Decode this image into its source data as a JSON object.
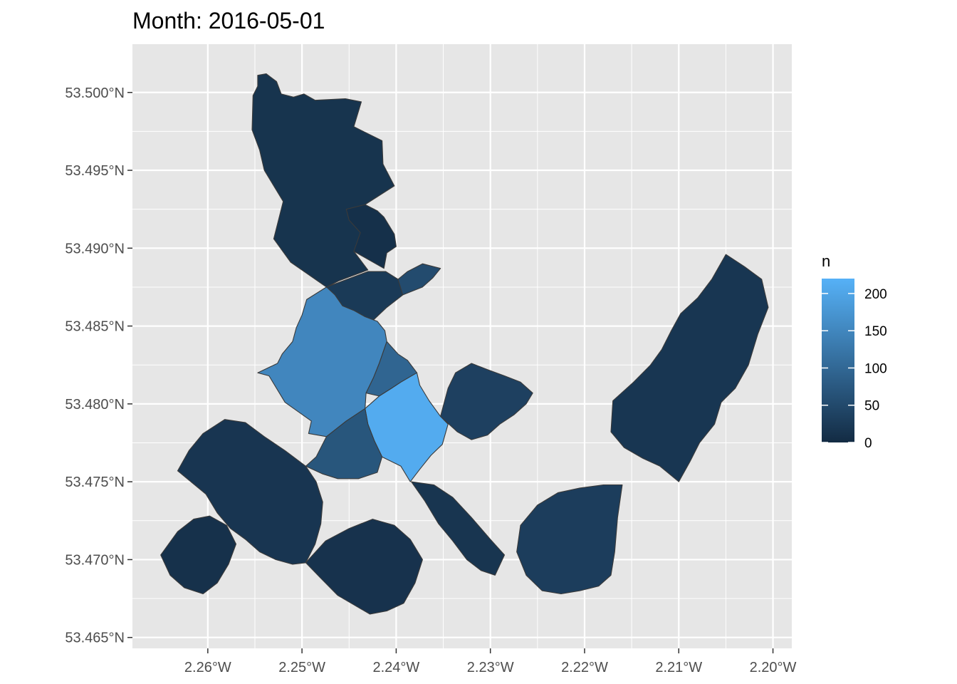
{
  "title": "Month: 2016-05-01",
  "chart_data": {
    "type": "choropleth",
    "title": "Month: 2016-05-01",
    "xlim": [
      -2.268,
      -2.198
    ],
    "ylim": [
      53.4643,
      53.5031
    ],
    "x_ticks": [
      -2.26,
      -2.25,
      -2.24,
      -2.23,
      -2.22,
      -2.21,
      -2.2
    ],
    "x_tick_labels": [
      "2.26°W",
      "2.25°W",
      "2.24°W",
      "2.23°W",
      "2.22°W",
      "2.21°W",
      "2.20°W"
    ],
    "y_ticks": [
      53.465,
      53.47,
      53.475,
      53.48,
      53.485,
      53.49,
      53.495,
      53.5
    ],
    "y_tick_labels": [
      "53.465°N",
      "53.470°N",
      "53.475°N",
      "53.480°N",
      "53.485°N",
      "53.490°N",
      "53.495°N",
      "53.500°N"
    ],
    "panel_background": "#e6e6e6",
    "grid_color": "#ffffff",
    "region_border_color": "#3a3a3a",
    "legend": {
      "title": "n",
      "position": "right",
      "min": 0,
      "max": 220,
      "breaks": [
        0,
        50,
        100,
        150,
        200
      ],
      "break_labels": [
        "0",
        "50",
        "100",
        "150",
        "200"
      ],
      "low_color": "#132b43",
      "high_color": "#56b1f7"
    },
    "regions": [
      {
        "id": "north-strip",
        "n": 14,
        "points": [
          [
            -2.2538,
            53.5012
          ],
          [
            -2.2527,
            53.5007
          ],
          [
            -2.2522,
            53.4999
          ],
          [
            -2.2509,
            53.4997
          ],
          [
            -2.2498,
            53.4999
          ],
          [
            -2.2486,
            53.4995
          ],
          [
            -2.2454,
            53.4996
          ],
          [
            -2.2437,
            53.4994
          ],
          [
            -2.2445,
            53.4978
          ],
          [
            -2.2415,
            53.4969
          ],
          [
            -2.2414,
            53.4954
          ],
          [
            -2.2402,
            53.494
          ],
          [
            -2.2433,
            53.4928
          ],
          [
            -2.2426,
            53.4908
          ],
          [
            -2.2445,
            53.4898
          ],
          [
            -2.243,
            53.4886
          ],
          [
            -2.2461,
            53.4879
          ],
          [
            -2.2474,
            53.4875
          ],
          [
            -2.2512,
            53.4891
          ],
          [
            -2.253,
            53.4906
          ],
          [
            -2.252,
            53.493
          ],
          [
            -2.254,
            53.495
          ],
          [
            -2.2545,
            53.4963
          ],
          [
            -2.2553,
            53.4976
          ],
          [
            -2.2552,
            53.4998
          ],
          [
            -2.2547,
            53.5004
          ],
          [
            -2.2547,
            53.5011
          ]
        ]
      },
      {
        "id": "north-small",
        "n": 8,
        "points": [
          [
            -2.2453,
            53.4925
          ],
          [
            -2.2433,
            53.4928
          ],
          [
            -2.242,
            53.4924
          ],
          [
            -2.2413,
            53.492
          ],
          [
            -2.2402,
            53.4909
          ],
          [
            -2.24,
            53.4901
          ],
          [
            -2.241,
            53.4897
          ],
          [
            -2.2413,
            53.4887
          ],
          [
            -2.2445,
            53.4898
          ],
          [
            -2.2438,
            53.491
          ],
          [
            -2.245,
            53.4918
          ]
        ]
      },
      {
        "id": "upper-center-left",
        "n": 24,
        "points": [
          [
            -2.2411,
            53.4885
          ],
          [
            -2.2398,
            53.488
          ],
          [
            -2.2393,
            53.487
          ],
          [
            -2.241,
            53.4862
          ],
          [
            -2.2424,
            53.4854
          ],
          [
            -2.2448,
            53.4852
          ],
          [
            -2.2467,
            53.485
          ],
          [
            -2.2475,
            53.4853
          ],
          [
            -2.2474,
            53.486
          ],
          [
            -2.2474,
            53.4875
          ],
          [
            -2.243,
            53.4885
          ]
        ]
      },
      {
        "id": "upper-center-right",
        "n": 52,
        "points": [
          [
            -2.2398,
            53.488
          ],
          [
            -2.2388,
            53.4885
          ],
          [
            -2.2372,
            53.489
          ],
          [
            -2.2353,
            53.4887
          ],
          [
            -2.2361,
            53.4881
          ],
          [
            -2.2372,
            53.4875
          ],
          [
            -2.2393,
            53.487
          ]
        ]
      },
      {
        "id": "west-main",
        "n": 150,
        "points": [
          [
            -2.2474,
            53.4875
          ],
          [
            -2.2465,
            53.487
          ],
          [
            -2.2457,
            53.4863
          ],
          [
            -2.2445,
            53.486
          ],
          [
            -2.2433,
            53.4856
          ],
          [
            -2.242,
            53.4853
          ],
          [
            -2.2412,
            53.4847
          ],
          [
            -2.241,
            53.484
          ],
          [
            -2.2418,
            53.4826
          ],
          [
            -2.2424,
            53.4817
          ],
          [
            -2.2432,
            53.4807
          ],
          [
            -2.2433,
            53.4797
          ],
          [
            -2.2453,
            53.4789
          ],
          [
            -2.2474,
            53.4779
          ],
          [
            -2.2493,
            53.4781
          ],
          [
            -2.249,
            53.4789
          ],
          [
            -2.2518,
            53.4801
          ],
          [
            -2.2535,
            53.4818
          ],
          [
            -2.2547,
            53.482
          ],
          [
            -2.2526,
            53.4826
          ],
          [
            -2.2521,
            53.4832
          ],
          [
            -2.251,
            53.484
          ],
          [
            -2.2506,
            53.4849
          ],
          [
            -2.25,
            53.4857
          ],
          [
            -2.2495,
            53.4867
          ]
        ]
      },
      {
        "id": "center-mid",
        "n": 95,
        "points": [
          [
            -2.241,
            53.484
          ],
          [
            -2.2398,
            53.4832
          ],
          [
            -2.2388,
            53.4828
          ],
          [
            -2.2378,
            53.482
          ],
          [
            -2.2395,
            53.4814
          ],
          [
            -2.2405,
            53.481
          ],
          [
            -2.2418,
            53.4805
          ],
          [
            -2.2432,
            53.4807
          ],
          [
            -2.2424,
            53.4817
          ],
          [
            -2.2418,
            53.4826
          ]
        ]
      },
      {
        "id": "center-bright",
        "n": 210,
        "points": [
          [
            -2.2418,
            53.4805
          ],
          [
            -2.2405,
            53.481
          ],
          [
            -2.2395,
            53.4814
          ],
          [
            -2.2378,
            53.482
          ],
          [
            -2.2375,
            53.4812
          ],
          [
            -2.2365,
            53.4802
          ],
          [
            -2.2353,
            53.4792
          ],
          [
            -2.2345,
            53.4787
          ],
          [
            -2.2351,
            53.4774
          ],
          [
            -2.2363,
            53.4767
          ],
          [
            -2.2375,
            53.4758
          ],
          [
            -2.2385,
            53.475
          ],
          [
            -2.2395,
            53.476
          ],
          [
            -2.2415,
            53.4766
          ],
          [
            -2.2423,
            53.4776
          ],
          [
            -2.243,
            53.4787
          ],
          [
            -2.2433,
            53.4797
          ]
        ]
      },
      {
        "id": "southwest-blue",
        "n": 70,
        "points": [
          [
            -2.2474,
            53.4779
          ],
          [
            -2.2453,
            53.4789
          ],
          [
            -2.2433,
            53.4797
          ],
          [
            -2.243,
            53.4787
          ],
          [
            -2.2423,
            53.4776
          ],
          [
            -2.2415,
            53.4766
          ],
          [
            -2.242,
            53.4756
          ],
          [
            -2.244,
            53.4752
          ],
          [
            -2.2462,
            53.4752
          ],
          [
            -2.2478,
            53.4755
          ],
          [
            -2.2496,
            53.476
          ],
          [
            -2.2485,
            53.4766
          ]
        ]
      },
      {
        "id": "east-mid",
        "n": 35,
        "points": [
          [
            -2.2353,
            53.4792
          ],
          [
            -2.2335,
            53.4782
          ],
          [
            -2.232,
            53.4777
          ],
          [
            -2.2303,
            53.478
          ],
          [
            -2.229,
            53.4787
          ],
          [
            -2.2275,
            53.4793
          ],
          [
            -2.2262,
            53.48
          ],
          [
            -2.2255,
            53.4807
          ],
          [
            -2.2268,
            53.4814
          ],
          [
            -2.2285,
            53.4818
          ],
          [
            -2.2303,
            53.4822
          ],
          [
            -2.232,
            53.4826
          ],
          [
            -2.2337,
            53.482
          ],
          [
            -2.2345,
            53.481
          ]
        ]
      },
      {
        "id": "far-east",
        "n": 18,
        "points": [
          [
            -2.205,
            53.4896
          ],
          [
            -2.203,
            53.4888
          ],
          [
            -2.2012,
            53.488
          ],
          [
            -2.2005,
            53.4862
          ],
          [
            -2.2016,
            53.4845
          ],
          [
            -2.2026,
            53.4825
          ],
          [
            -2.204,
            53.481
          ],
          [
            -2.2055,
            53.4801
          ],
          [
            -2.2062,
            53.4787
          ],
          [
            -2.2078,
            53.4775
          ],
          [
            -2.2088,
            53.4763
          ],
          [
            -2.21,
            53.475
          ],
          [
            -2.212,
            53.476
          ],
          [
            -2.2138,
            53.4765
          ],
          [
            -2.2158,
            53.4772
          ],
          [
            -2.2172,
            53.4782
          ],
          [
            -2.217,
            53.4802
          ],
          [
            -2.2148,
            53.4814
          ],
          [
            -2.213,
            53.4825
          ],
          [
            -2.2118,
            53.4835
          ],
          [
            -2.2108,
            53.4847
          ],
          [
            -2.2098,
            53.4858
          ],
          [
            -2.208,
            53.4868
          ],
          [
            -2.2065,
            53.488
          ]
        ]
      },
      {
        "id": "southeast",
        "n": 30,
        "points": [
          [
            -2.216,
            53.4748
          ],
          [
            -2.2165,
            53.4727
          ],
          [
            -2.2168,
            53.4705
          ],
          [
            -2.2172,
            53.469
          ],
          [
            -2.2185,
            53.4683
          ],
          [
            -2.2205,
            53.468
          ],
          [
            -2.2225,
            53.4678
          ],
          [
            -2.2245,
            53.468
          ],
          [
            -2.2262,
            53.469
          ],
          [
            -2.2272,
            53.4705
          ],
          [
            -2.2268,
            53.4722
          ],
          [
            -2.225,
            53.4735
          ],
          [
            -2.2228,
            53.4743
          ],
          [
            -2.2205,
            53.4746
          ],
          [
            -2.218,
            53.4748
          ]
        ]
      },
      {
        "id": "south-center",
        "n": 16,
        "points": [
          [
            -2.2384,
            53.475
          ],
          [
            -2.237,
            53.4738
          ],
          [
            -2.2355,
            53.4723
          ],
          [
            -2.234,
            53.4712
          ],
          [
            -2.2325,
            53.47
          ],
          [
            -2.231,
            53.4693
          ],
          [
            -2.2295,
            53.469
          ],
          [
            -2.2285,
            53.4703
          ],
          [
            -2.23,
            53.4713
          ],
          [
            -2.232,
            53.4727
          ],
          [
            -2.234,
            53.474
          ],
          [
            -2.236,
            53.4748
          ]
        ]
      },
      {
        "id": "southwest",
        "n": 17,
        "points": [
          [
            -2.2632,
            53.4757
          ],
          [
            -2.2618,
            53.475
          ],
          [
            -2.2602,
            53.4742
          ],
          [
            -2.259,
            53.473
          ],
          [
            -2.2576,
            53.472
          ],
          [
            -2.256,
            53.4713
          ],
          [
            -2.2545,
            53.4705
          ],
          [
            -2.2528,
            53.47
          ],
          [
            -2.251,
            53.4697
          ],
          [
            -2.2496,
            53.4698
          ],
          [
            -2.2486,
            53.471
          ],
          [
            -2.248,
            53.4723
          ],
          [
            -2.2478,
            53.4737
          ],
          [
            -2.2485,
            53.475
          ],
          [
            -2.2496,
            53.476
          ],
          [
            -2.2518,
            53.477
          ],
          [
            -2.254,
            53.4779
          ],
          [
            -2.256,
            53.4788
          ],
          [
            -2.2582,
            53.479
          ],
          [
            -2.2605,
            53.4781
          ],
          [
            -2.262,
            53.477
          ]
        ]
      },
      {
        "id": "south-bottom",
        "n": 12,
        "points": [
          [
            -2.2496,
            53.4698
          ],
          [
            -2.248,
            53.4688
          ],
          [
            -2.2462,
            53.4677
          ],
          [
            -2.2445,
            53.4671
          ],
          [
            -2.2428,
            53.4665
          ],
          [
            -2.241,
            53.4667
          ],
          [
            -2.2392,
            53.4672
          ],
          [
            -2.238,
            53.4685
          ],
          [
            -2.2372,
            53.47
          ],
          [
            -2.2385,
            53.4713
          ],
          [
            -2.2402,
            53.4722
          ],
          [
            -2.2425,
            53.4726
          ],
          [
            -2.245,
            53.472
          ],
          [
            -2.2475,
            53.4712
          ]
        ]
      },
      {
        "id": "far-west",
        "n": 10,
        "points": [
          [
            -2.265,
            53.4703
          ],
          [
            -2.264,
            53.469
          ],
          [
            -2.2625,
            53.4682
          ],
          [
            -2.2605,
            53.4678
          ],
          [
            -2.259,
            53.4685
          ],
          [
            -2.2578,
            53.4697
          ],
          [
            -2.257,
            53.471
          ],
          [
            -2.258,
            53.4722
          ],
          [
            -2.2598,
            53.4728
          ],
          [
            -2.2615,
            53.4726
          ],
          [
            -2.2632,
            53.4718
          ]
        ]
      }
    ]
  }
}
